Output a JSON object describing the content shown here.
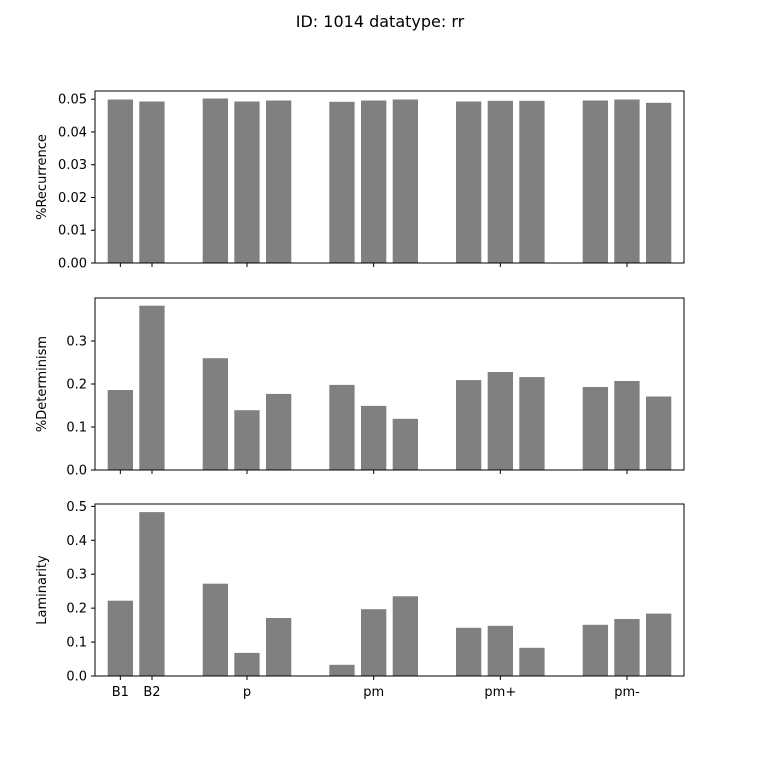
{
  "figure": {
    "suptitle": "ID: 1014 datatype: rr"
  },
  "chart_data": [
    {
      "type": "bar",
      "ylabel": "%Recurrence",
      "ylim": [
        0,
        0.0525
      ],
      "yticks": [
        "0.00",
        "0.01",
        "0.02",
        "0.03",
        "0.04",
        "0.05"
      ],
      "ytick_values": [
        0,
        0.01,
        0.02,
        0.03,
        0.04,
        0.05
      ],
      "values": [
        0.0499,
        0.0493,
        0.0502,
        0.0493,
        0.0496,
        0.0492,
        0.0496,
        0.0499,
        0.0493,
        0.0495,
        0.0495,
        0.0496,
        0.0499,
        0.0489
      ],
      "color": "#808080",
      "show_xticklabels": false
    },
    {
      "type": "bar",
      "ylabel": "%Determinism",
      "ylim": [
        0,
        0.4
      ],
      "yticks": [
        "0.0",
        "0.1",
        "0.2",
        "0.3"
      ],
      "ytick_values": [
        0,
        0.1,
        0.2,
        0.3
      ],
      "values": [
        0.186,
        0.382,
        0.26,
        0.139,
        0.177,
        0.198,
        0.149,
        0.119,
        0.209,
        0.228,
        0.216,
        0.193,
        0.207,
        0.171
      ],
      "color": "#808080",
      "show_xticklabels": false
    },
    {
      "type": "bar",
      "ylabel": "Laminarity",
      "ylim": [
        0,
        0.507
      ],
      "yticks": [
        "0.0",
        "0.1",
        "0.2",
        "0.3",
        "0.4",
        "0.5"
      ],
      "ytick_values": [
        0,
        0.1,
        0.2,
        0.3,
        0.4,
        0.5
      ],
      "values": [
        0.222,
        0.483,
        0.272,
        0.068,
        0.171,
        0.033,
        0.197,
        0.235,
        0.142,
        0.148,
        0.083,
        0.151,
        0.168,
        0.184
      ],
      "color": "#808080",
      "show_xticklabels": true
    }
  ],
  "x_categories": {
    "bar_positions": [
      1,
      2,
      4,
      5,
      6,
      8,
      9,
      10,
      12,
      13,
      14,
      16,
      17,
      18
    ],
    "tick_positions": [
      1,
      2,
      5,
      9,
      13,
      17
    ],
    "tick_labels": [
      "B1",
      "B2",
      "p",
      "pm",
      "pm+",
      "pm-"
    ]
  }
}
